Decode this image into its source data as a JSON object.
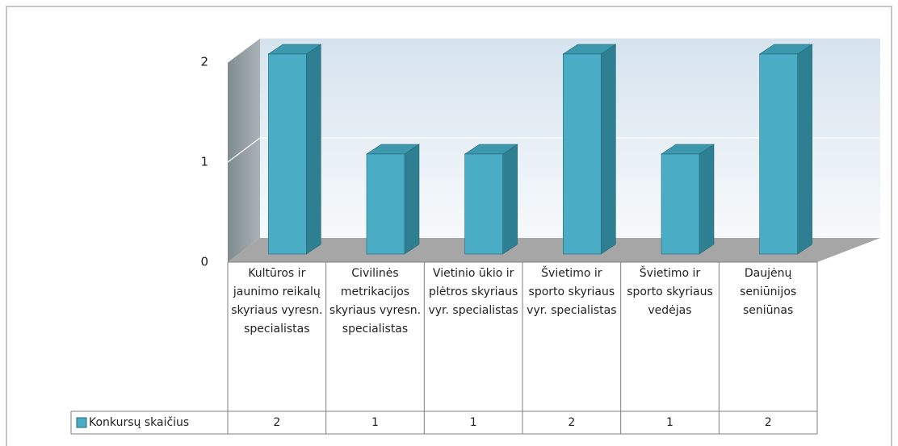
{
  "chart_data": {
    "type": "bar3d",
    "categories": [
      "Kultūros ir jaunimo reikalų skyriaus vyresn. specialistas",
      "Civilinės metrikacijos skyriaus vyresn. specialistas",
      "Vietinio ūkio ir plėtros skyriaus vyr. specialistas",
      "Švietimo ir sporto skyriaus vyr. specialistas",
      "Švietimo ir sporto skyriaus vedėjas",
      "Daujėnų seniūnijos seniūnas"
    ],
    "series": [
      {
        "name": "Konkursų skaičius",
        "color": "#4bacc6",
        "values": [
          2,
          1,
          1,
          2,
          1,
          2
        ]
      }
    ],
    "ylim": [
      0,
      2
    ],
    "yticks": [
      0,
      1,
      2
    ],
    "grid": true,
    "legend": "table-left"
  }
}
